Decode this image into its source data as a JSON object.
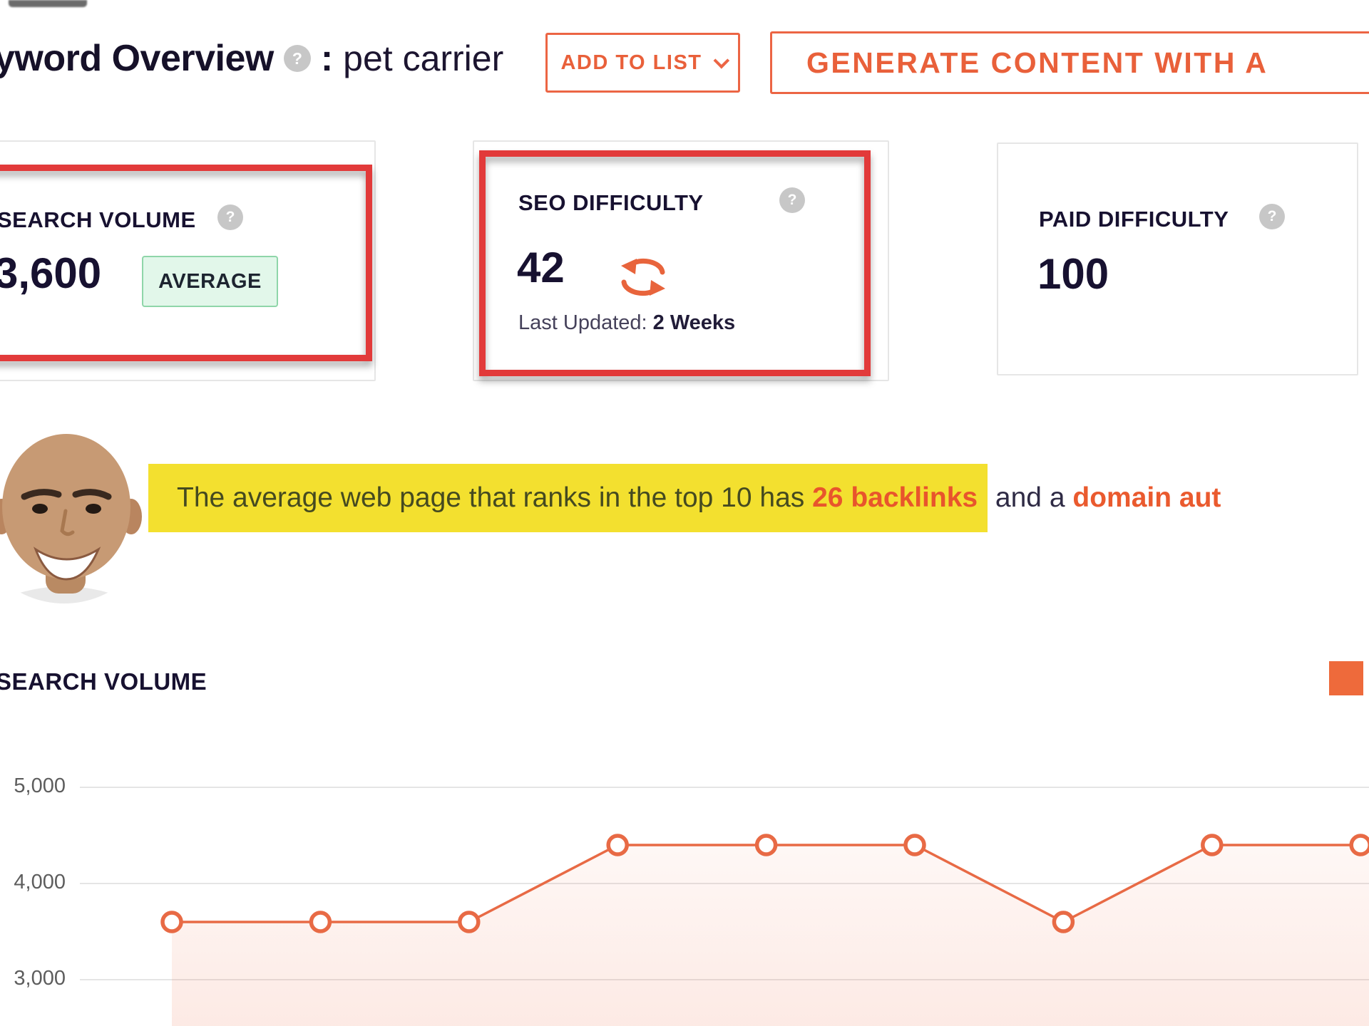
{
  "colors": {
    "accent_orange": "#ec6544",
    "annotation_red": "#e23a3a",
    "highlight_yellow": "#f3e02f",
    "badge_green_bg": "#e2f7ea",
    "badge_green_border": "#8fd6a9",
    "heading_dark": "#171130"
  },
  "icons": {
    "help_glyph": "?"
  },
  "header": {
    "title": "yword Overview",
    "separator": ":",
    "keyword": "pet carrier",
    "add_to_list_label": "ADD TO LIST",
    "generate_label": "GENERATE CONTENT WITH A"
  },
  "metric_cards": {
    "search_volume": {
      "label": "SEARCH VOLUME",
      "value": "3,600",
      "badge": "AVERAGE"
    },
    "seo_difficulty": {
      "label": "SEO DIFFICULTY",
      "value": "42",
      "last_updated_label": "Last Updated: ",
      "last_updated_value": "2 Weeks"
    },
    "paid_difficulty": {
      "label": "PAID DIFFICULTY",
      "value": "100"
    }
  },
  "insight": {
    "highlight_main": "The average web page that ranks in the top 10 has ",
    "highlight_strong": "26 backlinks",
    "plain_text": " and a ",
    "strong_orange": "domain aut"
  },
  "chart_section": {
    "title": "SEARCH VOLUME"
  },
  "chart_data": {
    "type": "line",
    "series": [
      {
        "name": "Search Volume",
        "values": [
          3600,
          3600,
          3600,
          4400,
          4400,
          4400,
          3600,
          4400,
          4400
        ]
      }
    ],
    "y_ticks": [
      5000,
      4000,
      3000
    ],
    "y_tick_labels": [
      "5,000",
      "4,000",
      "3,000"
    ],
    "grid": true,
    "line_color": "#e86a45",
    "marker": "open-circle",
    "area_fill": true,
    "legend": {
      "marker_color": "#ee6a3b",
      "position": "top-right"
    }
  }
}
